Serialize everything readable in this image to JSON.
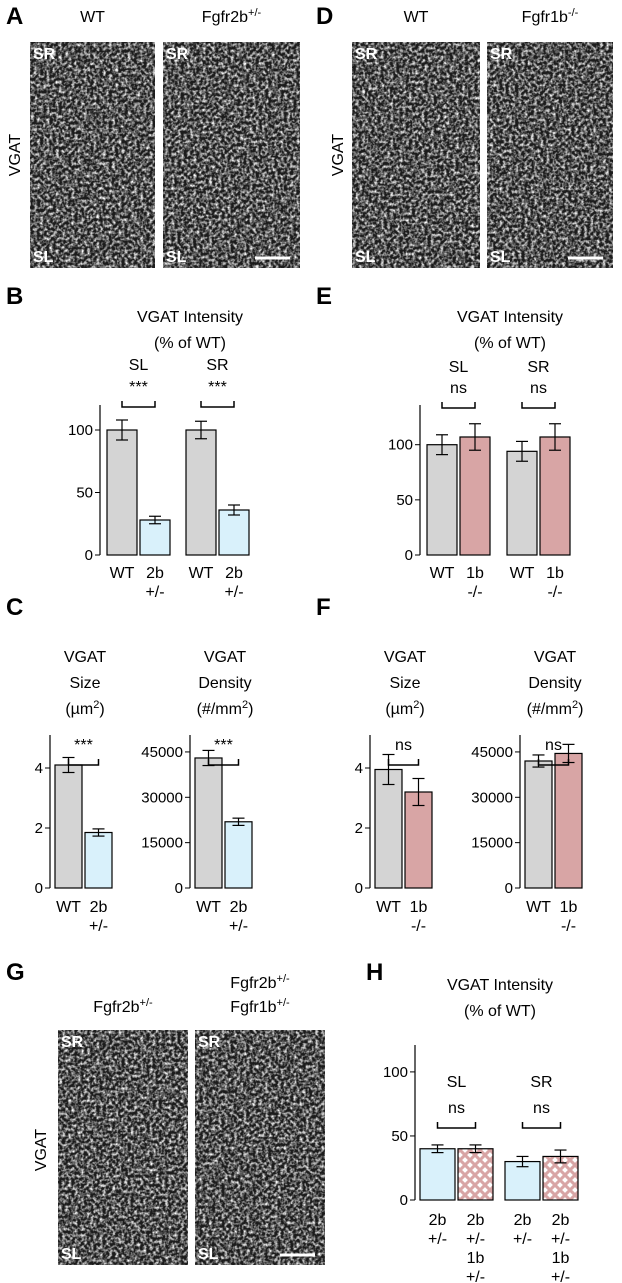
{
  "image_panels": [
    {
      "letter": "A",
      "stain": "VGAT",
      "region_top": "SR",
      "region_bottom": "SL",
      "columns": [
        [
          [
            "WT"
          ]
        ],
        [
          [
            "Fgfr2b",
            "+/-"
          ]
        ]
      ]
    },
    {
      "letter": "D",
      "stain": "VGAT",
      "region_top": "SR",
      "region_bottom": "SL",
      "columns": [
        [
          [
            "WT"
          ]
        ],
        [
          [
            "Fgfr1b",
            "-/-"
          ]
        ]
      ]
    },
    {
      "letter": "G",
      "stain": "VGAT",
      "region_top": "SR",
      "region_bottom": "SL",
      "columns": [
        [
          [
            "Fgfr2b",
            "+/-"
          ]
        ],
        [
          [
            "Fgfr2b",
            "+/-"
          ],
          [
            "Fgfr1b",
            "+/-"
          ]
        ]
      ]
    }
  ],
  "chart_data": [
    {
      "type": "bar",
      "letter": "B",
      "title": [
        [
          "VGAT Intensity"
        ],
        [
          "(% of WT)"
        ]
      ],
      "groups": [
        "SL",
        "SR"
      ],
      "significance": [
        "***",
        "***"
      ],
      "categories": [
        [
          "WT"
        ],
        [
          "2b",
          "+/-"
        ],
        [
          "WT"
        ],
        [
          "2b",
          "+/-"
        ]
      ],
      "values": [
        100,
        28,
        100,
        36
      ],
      "errors": [
        8,
        3,
        7,
        4
      ],
      "colors": [
        "#d4d4d4",
        "#d9f1fb",
        "#d4d4d4",
        "#d9f1fb"
      ],
      "hatch": [
        false,
        false,
        false,
        false
      ],
      "ylim": [
        0,
        120
      ],
      "yticks": [
        0,
        50,
        100
      ]
    },
    {
      "type": "bar",
      "letter": "E",
      "title": [
        [
          "VGAT Intensity"
        ],
        [
          "(% of WT)"
        ]
      ],
      "groups": [
        "SL",
        "SR"
      ],
      "significance": [
        "ns",
        "ns"
      ],
      "categories": [
        [
          "WT"
        ],
        [
          "1b",
          "-/-"
        ],
        [
          "WT"
        ],
        [
          "1b",
          "-/-"
        ]
      ],
      "values": [
        100,
        107,
        94,
        107
      ],
      "errors": [
        9,
        12,
        9,
        12
      ],
      "colors": [
        "#d4d4d4",
        "#d8a5a5",
        "#d4d4d4",
        "#d8a5a5"
      ],
      "hatch": [
        false,
        false,
        false,
        false
      ],
      "ylim": [
        0,
        136
      ],
      "yticks": [
        0,
        50,
        100
      ]
    },
    {
      "type": "bar",
      "letter": "C",
      "title": [
        [
          "VGAT"
        ],
        [
          "Size"
        ],
        [
          "(µm",
          "2",
          ")"
        ]
      ],
      "significance": [
        "***"
      ],
      "categories": [
        [
          "WT"
        ],
        [
          "2b",
          "+/-"
        ]
      ],
      "values": [
        4.1,
        1.85
      ],
      "errors": [
        0.25,
        0.12
      ],
      "colors": [
        "#d4d4d4",
        "#d9f1fb"
      ],
      "hatch": [
        false,
        false
      ],
      "ylim": [
        0,
        5.1
      ],
      "yticks": [
        0,
        2,
        4
      ]
    },
    {
      "type": "bar",
      "title": [
        [
          "VGAT"
        ],
        [
          "Density"
        ],
        [
          "(#/mm",
          "2",
          ")"
        ]
      ],
      "significance": [
        "***"
      ],
      "categories": [
        [
          "WT"
        ],
        [
          "2b",
          "+/-"
        ]
      ],
      "values": [
        43000,
        21900
      ],
      "errors": [
        2500,
        1200
      ],
      "colors": [
        "#d4d4d4",
        "#d9f1fb"
      ],
      "hatch": [
        false,
        false
      ],
      "ylim": [
        0,
        50600
      ],
      "yticks": [
        0,
        15000,
        30000,
        45000
      ]
    },
    {
      "type": "bar",
      "letter": "F",
      "title": [
        [
          "VGAT"
        ],
        [
          "Size"
        ],
        [
          "(µm",
          "2",
          ")"
        ]
      ],
      "significance": [
        "ns"
      ],
      "categories": [
        [
          "WT"
        ],
        [
          "1b",
          "-/-"
        ]
      ],
      "values": [
        3.95,
        3.2
      ],
      "errors": [
        0.5,
        0.45
      ],
      "colors": [
        "#d4d4d4",
        "#d8a5a5"
      ],
      "hatch": [
        false,
        false
      ],
      "ylim": [
        0,
        5.1
      ],
      "yticks": [
        0,
        2,
        4
      ]
    },
    {
      "type": "bar",
      "title": [
        [
          "VGAT"
        ],
        [
          "Density"
        ],
        [
          "(#/mm",
          "2",
          ")"
        ]
      ],
      "significance": [
        "ns"
      ],
      "categories": [
        [
          "WT"
        ],
        [
          "1b",
          "-/-"
        ]
      ],
      "values": [
        42000,
        44500
      ],
      "errors": [
        2000,
        3000
      ],
      "colors": [
        "#d4d4d4",
        "#d8a5a5"
      ],
      "hatch": [
        false,
        false
      ],
      "ylim": [
        0,
        50600
      ],
      "yticks": [
        0,
        15000,
        30000,
        45000
      ]
    },
    {
      "type": "bar",
      "letter": "H",
      "title": [
        [
          "VGAT Intensity"
        ],
        [
          "(% of WT)"
        ]
      ],
      "groups": [
        "SL",
        "SR"
      ],
      "significance": [
        "ns",
        "ns"
      ],
      "categories": [
        [
          "2b",
          "+/-"
        ],
        [
          "2b",
          "+/-",
          "1b",
          "+/-"
        ],
        [
          "2b",
          "+/-"
        ],
        [
          "2b",
          "+/-",
          "1b",
          "+/-"
        ]
      ],
      "values": [
        40,
        40,
        30,
        34
      ],
      "errors": [
        3,
        3,
        4,
        5
      ],
      "colors": [
        "#d9f1fb",
        "#d8a5a5",
        "#d9f1fb",
        "#d8a5a5"
      ],
      "hatch": [
        false,
        true,
        false,
        true
      ],
      "ylim": [
        0,
        121
      ],
      "yticks": [
        0,
        50,
        100
      ]
    }
  ]
}
